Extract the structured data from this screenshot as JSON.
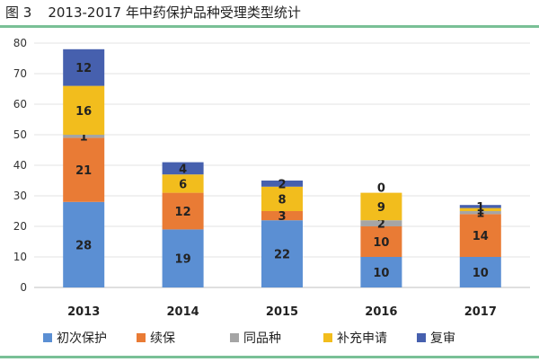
{
  "figure": {
    "number": "图 3",
    "title": "2013-2017 年中药保护品种受理类型统计"
  },
  "colors": {
    "rule": "#79c096"
  },
  "chart_data": {
    "type": "bar",
    "stacked": true,
    "categories": [
      "2013",
      "2014",
      "2015",
      "2016",
      "2017"
    ],
    "ylim": [
      0,
      80
    ],
    "yticks": [
      0,
      10,
      20,
      30,
      40,
      50,
      60,
      70,
      80
    ],
    "grid": true,
    "legend_position": "bottom",
    "series": [
      {
        "name": "初次保护",
        "color": "#5b8fd3",
        "values": [
          28,
          19,
          22,
          10,
          10
        ]
      },
      {
        "name": "续保",
        "color": "#e97b35",
        "values": [
          21,
          12,
          3,
          10,
          14
        ]
      },
      {
        "name": "同品种",
        "color": "#a5a5a5",
        "values": [
          1,
          0,
          0,
          2,
          1
        ]
      },
      {
        "name": "补充申请",
        "color": "#f2bd1d",
        "values": [
          16,
          6,
          8,
          9,
          1
        ]
      },
      {
        "name": "复审",
        "color": "#4660ae",
        "values": [
          12,
          4,
          2,
          0,
          1
        ]
      }
    ]
  }
}
